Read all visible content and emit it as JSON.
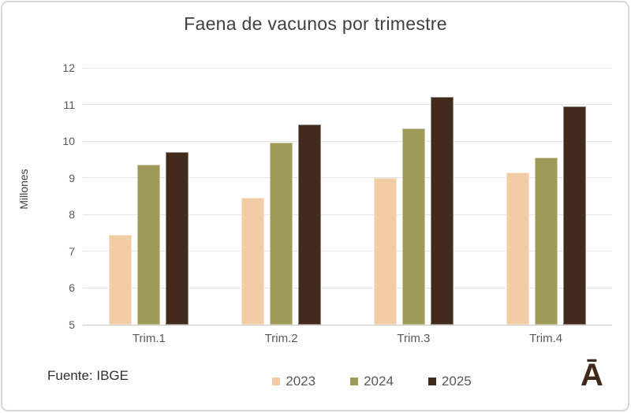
{
  "chart_data": {
    "type": "bar",
    "title": "Faena de vacunos por trimestre",
    "xlabel": "",
    "ylabel": "Millones",
    "categories": [
      "Trim.1",
      "Trim.2",
      "Trim.3",
      "Trim.4"
    ],
    "series": [
      {
        "name": "2023",
        "color": "#f1cca4",
        "values": [
          7.45,
          8.45,
          9.0,
          9.15
        ]
      },
      {
        "name": "2024",
        "color": "#a09a5a",
        "values": [
          9.35,
          9.97,
          10.35,
          9.55
        ]
      },
      {
        "name": "2025",
        "color": "#412a1b",
        "values": [
          9.7,
          10.45,
          11.2,
          10.95
        ]
      }
    ],
    "ylim": [
      5,
      12
    ],
    "yticks": [
      5,
      6,
      7,
      8,
      9,
      10,
      11,
      12
    ],
    "grid": true,
    "legend_position": "bottom"
  },
  "source": {
    "label": "Fuente: IBGE"
  },
  "logo": {
    "glyph": "Ā"
  },
  "colors": {
    "frame_border": "#d9d5d9",
    "title_text": "#404040",
    "axis_text": "#595959",
    "gridline": "#e4e4e4",
    "axis_line": "#c7c7c7",
    "source_text": "#303030",
    "logo": "#402a1b"
  }
}
